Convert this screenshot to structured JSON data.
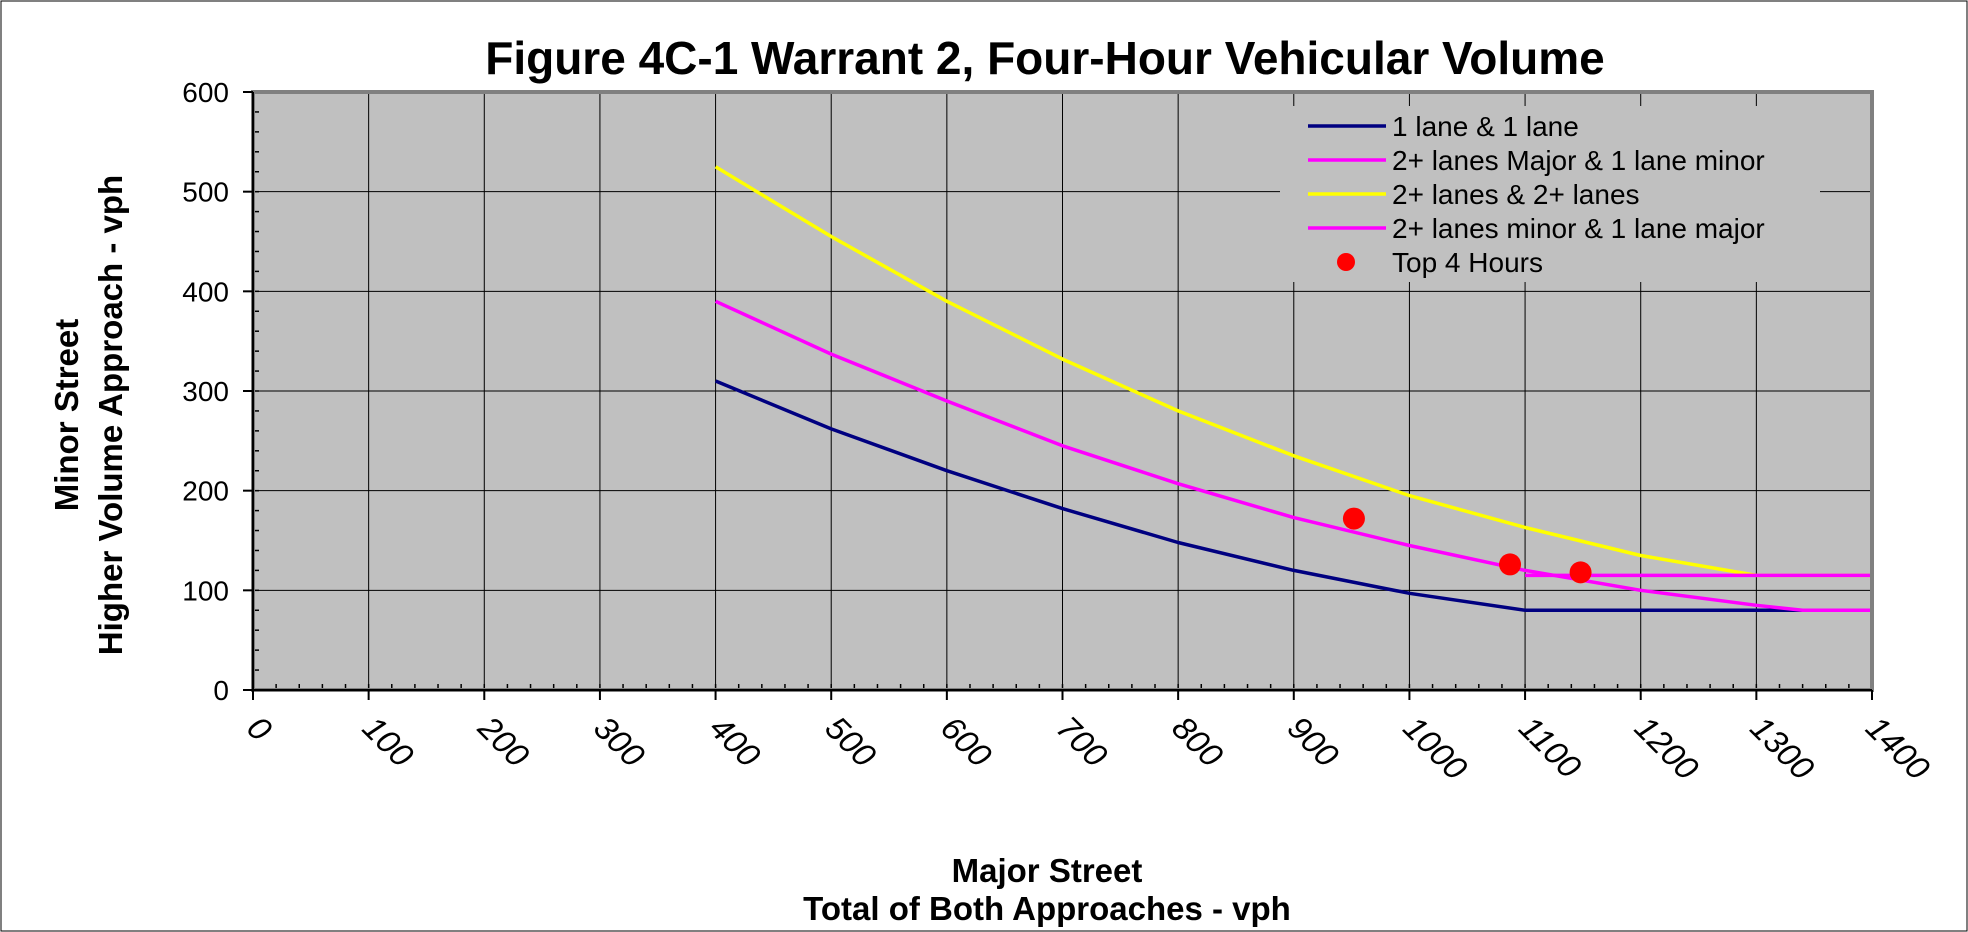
{
  "chart_data": {
    "type": "line",
    "title": "Figure 4C-1 Warrant 2, Four-Hour Vehicular Volume",
    "xlabel": [
      "Major Street",
      "Total of Both Approaches - vph"
    ],
    "ylabel": [
      "Minor Street",
      "Higher Volume Approach - vph"
    ],
    "xlim": [
      0,
      1400
    ],
    "ylim": [
      0,
      600
    ],
    "x_ticks": [
      "0",
      "100",
      "200",
      "300",
      "400",
      "500",
      "600",
      "700",
      "800",
      "900",
      "1000",
      "1100",
      "1200",
      "1300",
      "1400"
    ],
    "y_ticks": [
      "0",
      "100",
      "200",
      "300",
      "400",
      "500",
      "600"
    ],
    "grid": true,
    "legend_position": "top-right",
    "plot_background": "#c0c0c0",
    "series": [
      {
        "name": "1 lane & 1 lane",
        "type": "line",
        "color": "#000080",
        "x": [
          400,
          500,
          600,
          700,
          800,
          900,
          1000,
          1100,
          1200,
          1300,
          1400
        ],
        "y": [
          310,
          262,
          220,
          182,
          148,
          120,
          97,
          80,
          80,
          80,
          80
        ]
      },
      {
        "name": "2+ lanes Major & 1 lane minor",
        "type": "line",
        "color": "#ff00ff",
        "x": [
          400,
          500,
          600,
          700,
          800,
          900,
          1000,
          1100,
          1200,
          1300,
          1340,
          1400
        ],
        "y": [
          390,
          337,
          290,
          245,
          207,
          173,
          145,
          120,
          100,
          85,
          80,
          80
        ]
      },
      {
        "name": "2+ lanes & 2+ lanes",
        "type": "line",
        "color": "#ffff00",
        "x": [
          400,
          500,
          600,
          700,
          800,
          900,
          1000,
          1100,
          1200,
          1300,
          1400
        ],
        "y": [
          525,
          455,
          390,
          332,
          280,
          235,
          195,
          163,
          135,
          115,
          115
        ]
      },
      {
        "name": "2+ lanes minor & 1 lane major",
        "type": "line",
        "color": "#ff00ff",
        "x": [
          1100,
          1400
        ],
        "y": [
          115,
          115
        ]
      },
      {
        "name": "Top 4 Hours",
        "type": "scatter",
        "color": "#ff0000",
        "x": [
          952,
          1087,
          1148
        ],
        "y": [
          172,
          126,
          118
        ]
      }
    ]
  }
}
